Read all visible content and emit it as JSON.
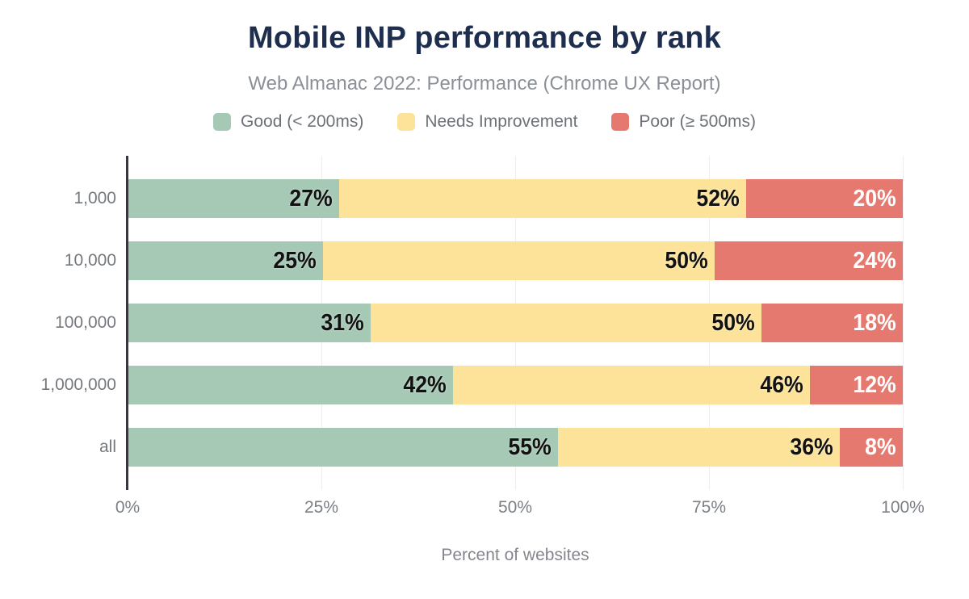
{
  "chart_data": {
    "type": "bar",
    "orientation": "horizontal",
    "stacked": true,
    "title": "Mobile INP performance by rank",
    "subtitle": "Web Almanac 2022: Performance (Chrome UX Report)",
    "xlabel": "Percent of websites",
    "ylabel": "",
    "categories": [
      "1,000",
      "10,000",
      "100,000",
      "1,000,000",
      "all"
    ],
    "series": [
      {
        "name": "Good (< 200ms)",
        "color": "#a6c9b6",
        "label_color": "dark",
        "values": [
          27,
          25,
          31,
          42,
          55
        ]
      },
      {
        "name": "Needs Improvement",
        "color": "#fde39a",
        "label_color": "dark",
        "values": [
          52,
          50,
          50,
          46,
          36
        ]
      },
      {
        "name": "Poor (≥ 500ms)",
        "color": "#e6796f",
        "label_color": "light",
        "values": [
          20,
          24,
          18,
          12,
          8
        ]
      }
    ],
    "value_suffix": "%",
    "x_ticks": [
      "0%",
      "25%",
      "50%",
      "75%",
      "100%"
    ],
    "x_tick_values": [
      0,
      25,
      50,
      75,
      100
    ],
    "xlim": [
      0,
      100
    ],
    "grid": true,
    "legend_position": "top"
  },
  "colors": {
    "background": "#ffffff",
    "title": "#1e2e4f",
    "subtitle": "#8b9097",
    "legend_text": "#6d7278",
    "axis_line": "#37383b",
    "gridline": "#ededed",
    "tick_text": "#7b7f85",
    "bar_label_dark": "#121212",
    "bar_label_light": "#ffffff"
  }
}
